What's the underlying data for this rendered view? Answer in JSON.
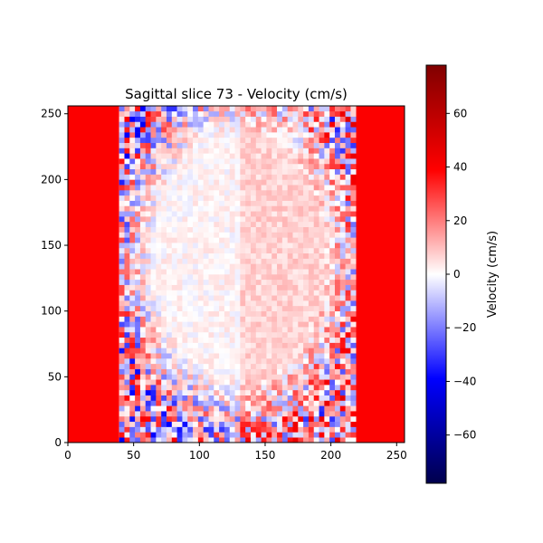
{
  "chart_data": {
    "type": "heatmap",
    "title": "Sagittal slice 73 - Velocity (cm/s)",
    "xlabel": "",
    "ylabel": "",
    "xlim": [
      0,
      256
    ],
    "ylim": [
      0,
      256
    ],
    "x_ticks": [
      0,
      50,
      100,
      150,
      200,
      250
    ],
    "y_ticks": [
      0,
      50,
      100,
      150,
      200,
      250
    ],
    "colormap": "seismic",
    "colormap_stops": [
      "#00004c",
      "#0000ff",
      "#ffffff",
      "#ff0000",
      "#800000"
    ],
    "colorbar": {
      "label": "Velocity (cm/s)",
      "range": [
        -78,
        78
      ],
      "ticks": [
        -60,
        -40,
        -20,
        0,
        20,
        40,
        60
      ],
      "tick_labels": [
        "−60",
        "−40",
        "−20",
        "0",
        "20",
        "40",
        "60"
      ]
    },
    "regions": [
      {
        "name": "left mask",
        "x_range": [
          0,
          39
        ],
        "y_range": [
          0,
          256
        ],
        "value": 40
      },
      {
        "name": "right mask",
        "x_range": [
          217,
          256
        ],
        "y_range": [
          0,
          256
        ],
        "value": 40
      },
      {
        "name": "tissue",
        "x_range": [
          39,
          217
        ],
        "y_range": [
          0,
          256
        ],
        "value": 3,
        "noise_cm_s": 30
      }
    ],
    "grid": false
  }
}
